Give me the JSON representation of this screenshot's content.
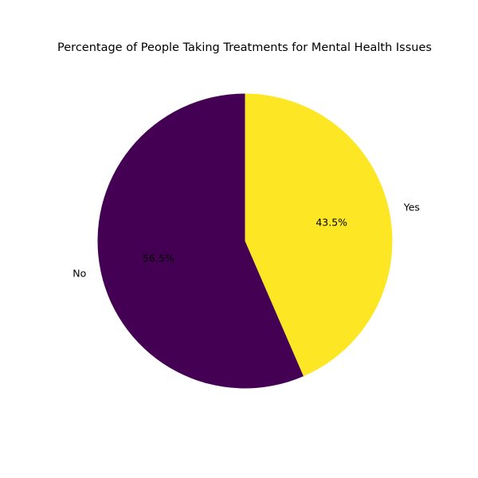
{
  "chart_data": {
    "type": "pie",
    "title": "Percentage of People Taking Treatments for Mental Health Issues",
    "slices": [
      {
        "label": "Yes",
        "value": 43.5,
        "pct_label": "43.5%",
        "color": "#fde725"
      },
      {
        "label": "No",
        "value": 56.5,
        "pct_label": "56.5%",
        "color": "#440154"
      }
    ],
    "start_angle_deg": 90,
    "direction": "clockwise",
    "legend": "none"
  }
}
